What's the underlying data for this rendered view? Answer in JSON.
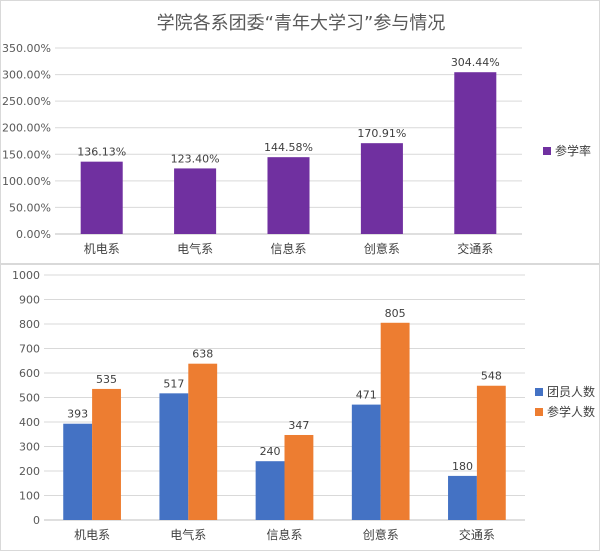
{
  "chart_data": [
    {
      "type": "bar",
      "title": "学院各系团委“青年大学习”参与情况",
      "categories": [
        "机电系",
        "电气系",
        "信息系",
        "创意系",
        "交通系"
      ],
      "series": [
        {
          "name": "参学率",
          "color": "#7030a0",
          "values": [
            136.13,
            123.4,
            144.58,
            170.91,
            304.44
          ],
          "labels": [
            "136.13%",
            "123.40%",
            "144.58%",
            "170.91%",
            "304.44%"
          ]
        }
      ],
      "ylim": [
        0,
        350
      ],
      "yticks": [
        "0.00%",
        "50.00%",
        "100.00%",
        "150.00%",
        "200.00%",
        "250.00%",
        "300.00%",
        "350.00%"
      ],
      "grid": true,
      "legend": "right"
    },
    {
      "type": "bar",
      "categories": [
        "机电系",
        "电气系",
        "信息系",
        "创意系",
        "交通系"
      ],
      "series": [
        {
          "name": "团员人数",
          "color": "#4472c4",
          "values": [
            393,
            517,
            240,
            471,
            180
          ]
        },
        {
          "name": "参学人数",
          "color": "#ed7d31",
          "values": [
            535,
            638,
            347,
            805,
            548
          ]
        }
      ],
      "ylim": [
        0,
        1000
      ],
      "yticks": [
        "0",
        "100",
        "200",
        "300",
        "400",
        "500",
        "600",
        "700",
        "800",
        "900",
        "1000"
      ],
      "grid": true,
      "legend": "right"
    }
  ]
}
